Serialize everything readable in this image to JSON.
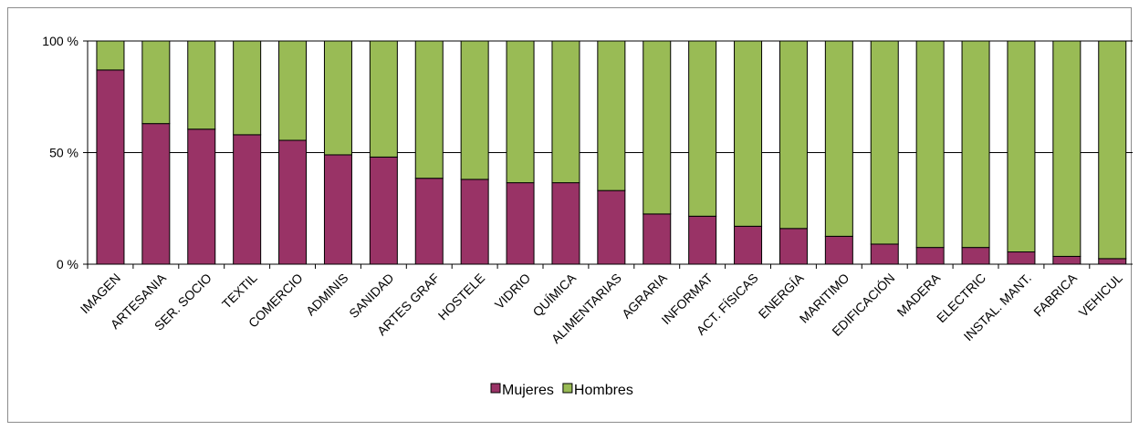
{
  "chart_data": {
    "type": "bar",
    "stacked": true,
    "percent_stacked": true,
    "title": "",
    "xlabel": "",
    "ylabel": "",
    "ylim": [
      0,
      100
    ],
    "y_ticks": [
      0,
      50,
      100
    ],
    "y_tick_labels": [
      "0 %",
      "50 %",
      "100 %"
    ],
    "grid": true,
    "legend_position": "bottom",
    "categories": [
      "IMAGEN",
      "ARTESANIA",
      "SER. SOCIO",
      "TEXTIL",
      "COMERCIO",
      "ADMINIS",
      "SANIDAD",
      "ARTES GRAF",
      "HOSTELE",
      "VIDRIO",
      "QUÍMICA",
      "ALIMENTARIAS",
      "AGRARIA",
      "INFORMAT",
      "ACT. FÍSICAS",
      "ENERGÍA",
      "MARITIMO",
      "EDIFICACIÓN",
      "MADERA",
      "ELECTRIC",
      "INSTAL. MANT.",
      "FABRICA",
      "VEHICUL"
    ],
    "series": [
      {
        "name": "Mujeres",
        "color": "#993366",
        "values": [
          87,
          63,
          60.5,
          58,
          55.5,
          49,
          48,
          38.5,
          38,
          36.5,
          36.5,
          33,
          22.5,
          21.5,
          17,
          16,
          12.5,
          9,
          7.5,
          7.5,
          5.5,
          3.5,
          2.5
        ]
      },
      {
        "name": "Hombres",
        "color": "#99bb55",
        "values": [
          13,
          37,
          39.5,
          42,
          44.5,
          51,
          52,
          61.5,
          62,
          63.5,
          63.5,
          67,
          77.5,
          78.5,
          83,
          84,
          87.5,
          91,
          92.5,
          92.5,
          94.5,
          96.5,
          97.5
        ]
      }
    ]
  }
}
